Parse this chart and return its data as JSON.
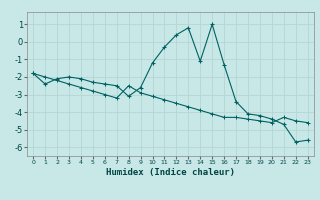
{
  "xlabel": "Humidex (Indice chaleur)",
  "bg_color": "#c8e8e8",
  "grid_color": "#b0cecece",
  "line_color": "#006060",
  "xlim": [
    -0.5,
    23.5
  ],
  "ylim": [
    -6.5,
    1.7
  ],
  "yticks": [
    -6,
    -5,
    -4,
    -3,
    -2,
    -1,
    0,
    1
  ],
  "xticks": [
    0,
    1,
    2,
    3,
    4,
    5,
    6,
    7,
    8,
    9,
    10,
    11,
    12,
    13,
    14,
    15,
    16,
    17,
    18,
    19,
    20,
    21,
    22,
    23
  ],
  "curve1_x": [
    0,
    1,
    2,
    3,
    4,
    5,
    6,
    7,
    8,
    9,
    10,
    11,
    12,
    13,
    14,
    15,
    16,
    17,
    18,
    19,
    20,
    21,
    22,
    23
  ],
  "curve1_y": [
    -1.8,
    -2.4,
    -2.1,
    -2.0,
    -2.1,
    -2.3,
    -2.4,
    -2.5,
    -3.1,
    -2.6,
    -1.2,
    -0.3,
    0.4,
    0.8,
    -1.1,
    1.0,
    -1.3,
    -3.4,
    -4.1,
    -4.2,
    -4.4,
    -4.7,
    -5.7,
    -5.6
  ],
  "curve2_x": [
    0,
    1,
    2,
    3,
    4,
    5,
    6,
    7,
    8,
    9,
    10,
    11,
    12,
    13,
    14,
    15,
    16,
    17,
    18,
    19,
    20,
    21,
    22,
    23
  ],
  "curve2_y": [
    -1.8,
    -2.0,
    -2.2,
    -2.4,
    -2.6,
    -2.8,
    -3.0,
    -3.2,
    -2.5,
    -2.9,
    -3.1,
    -3.3,
    -3.5,
    -3.7,
    -3.9,
    -4.1,
    -4.3,
    -4.3,
    -4.4,
    -4.5,
    -4.6,
    -4.3,
    -4.5,
    -4.6
  ]
}
